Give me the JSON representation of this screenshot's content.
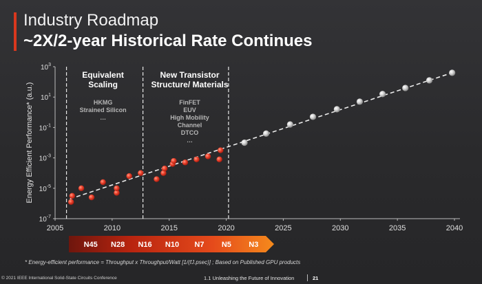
{
  "slide": {
    "title_line1": "Industry Roadmap",
    "title_line2": "~2X/2-year Historical Rate Continues",
    "accent_color": "#d9381e",
    "footnote": "* Energy-efficient performance = Throughput x Throughput/Watt [1/(fJ.psec)] ; Based on Published GPU products",
    "footer_left": "© 2021 IEEE International Solid-State Circuits Conference",
    "footer_right": "1.1 Unleashing the Future of Innovation",
    "page_number": "21"
  },
  "chart_data": {
    "type": "scatter",
    "ylabel": "Energy Efficient Performance* (a.u.)",
    "xlabel": "",
    "xlim": [
      2005,
      2040
    ],
    "ylim_log10": [
      -7,
      3
    ],
    "y_scale": "log",
    "x_ticks": [
      "2005",
      "2010",
      "2015",
      "2020",
      "2025",
      "2030",
      "2035",
      "2040"
    ],
    "y_ticks": [
      {
        "base": "10",
        "exp": "3"
      },
      {
        "base": "10",
        "exp": "1"
      },
      {
        "base": "10",
        "exp": "-1"
      },
      {
        "base": "10",
        "exp": "-3"
      },
      {
        "base": "10",
        "exp": "-5"
      },
      {
        "base": "10",
        "exp": "-7"
      }
    ],
    "dividers_x": [
      2006,
      2012.7,
      2020.2
    ],
    "regions": [
      {
        "heading": [
          "Equivalent",
          "Scaling"
        ],
        "items": [
          "HKMG",
          "Strained Silicon",
          "…"
        ],
        "center_x": 2009.2
      },
      {
        "heading": [
          "New Transistor",
          "Structure/ Materials"
        ],
        "items": [
          "FinFET",
          "EUV",
          "High Mobility",
          "Channel",
          "DTCO",
          "…"
        ],
        "center_x": 2016.8
      }
    ],
    "series": [
      {
        "marker_color": "#e8412e",
        "points": [
          [
            2006.4,
            -5.9
          ],
          [
            2006.5,
            -5.5
          ],
          [
            2007.3,
            -5.0
          ],
          [
            2008.2,
            -5.6
          ],
          [
            2009.2,
            -4.6
          ],
          [
            2010.4,
            -5.3
          ],
          [
            2010.4,
            -5.0
          ],
          [
            2011.5,
            -4.2
          ],
          [
            2012.5,
            -4.0
          ],
          [
            2013.9,
            -4.4
          ],
          [
            2014.5,
            -4.0
          ],
          [
            2014.6,
            -3.7
          ],
          [
            2015.3,
            -3.4
          ],
          [
            2015.4,
            -3.2
          ],
          [
            2016.4,
            -3.3
          ],
          [
            2017.4,
            -3.1
          ],
          [
            2018.4,
            -2.9
          ],
          [
            2019.4,
            -3.1
          ],
          [
            2019.5,
            -2.5
          ]
        ]
      },
      {
        "marker_color": "#bdbdbd",
        "points": [
          [
            2021.6,
            -2.0
          ],
          [
            2023.5,
            -1.4
          ],
          [
            2025.6,
            -0.8
          ],
          [
            2027.6,
            -0.3
          ],
          [
            2029.7,
            0.2
          ],
          [
            2031.7,
            0.7
          ],
          [
            2033.7,
            1.2
          ],
          [
            2035.7,
            1.6
          ],
          [
            2037.8,
            2.1
          ],
          [
            2039.8,
            2.6
          ]
        ]
      }
    ],
    "trend_line": {
      "from": [
        2006.3,
        -5.7
      ],
      "to": [
        2039.8,
        2.6
      ],
      "style": "dashed"
    },
    "node_bar": {
      "labels": [
        "N45",
        "N28",
        "N16",
        "N10",
        "N7",
        "N5",
        "N3"
      ],
      "gradient_colors": [
        "#7a1a10",
        "#c52a16",
        "#e64a1c",
        "#f0801a"
      ]
    }
  }
}
